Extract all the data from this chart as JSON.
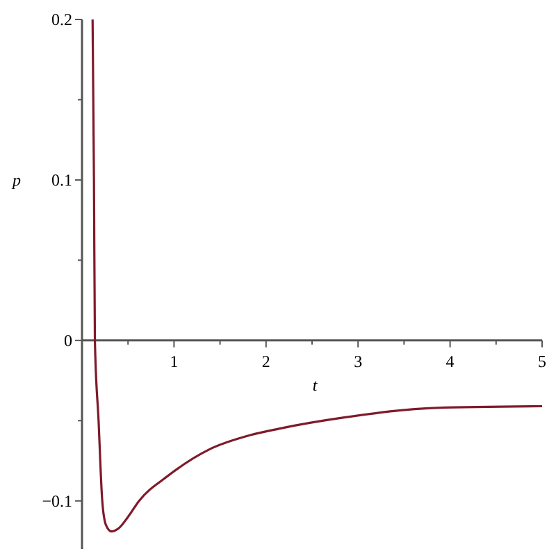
{
  "chart_data": {
    "type": "line",
    "xlabel": "t",
    "ylabel": "p",
    "xlim": [
      0,
      5
    ],
    "ylim": [
      -0.13,
      0.2
    ],
    "xticks": [
      {
        "value": 0.5,
        "label": null
      },
      1,
      {
        "value": 1.5,
        "label": null
      },
      2,
      {
        "value": 2.5,
        "label": null
      },
      3,
      {
        "value": 3.5,
        "label": null
      },
      4,
      {
        "value": 4.5,
        "label": null
      },
      5
    ],
    "yticks": [
      {
        "value": -0.1,
        "label": "−0.1"
      },
      {
        "value": -0.05,
        "label": null
      },
      0,
      {
        "value": 0.05,
        "label": null
      },
      0.1,
      {
        "value": 0.15,
        "label": null
      },
      0.2
    ],
    "grid": false,
    "marker": "none",
    "line_style": "solid",
    "series": [
      {
        "color": "#7f1a2a",
        "x": [
          0.115,
          0.13,
          0.14,
          0.18,
          0.22,
          0.26,
          0.32,
          0.4,
          0.5,
          0.62,
          0.92,
          1.38,
          1.83,
          2.14,
          2.85,
          3.85,
          5
        ],
        "values": [
          0.2,
          0.1,
          0,
          -0.05,
          -0.1,
          -0.115,
          -0.119,
          -0.117,
          -0.11,
          -0.1,
          -0.085,
          -0.068,
          -0.059,
          -0.055,
          -0.048,
          -0.042,
          -0.041
        ]
      }
    ]
  }
}
